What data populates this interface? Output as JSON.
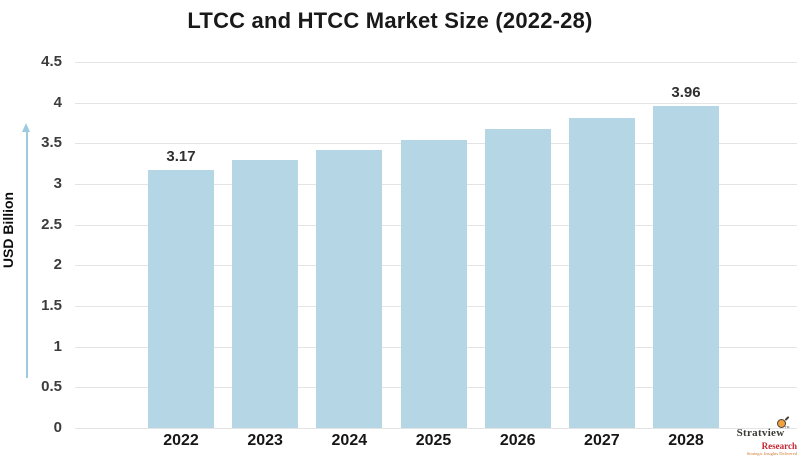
{
  "title": "LTCC and HTCC Market Size (2022-28)",
  "chart_data": {
    "type": "bar",
    "title": "LTCC and HTCC Market Size (2022-28)",
    "categories": [
      "2022",
      "2023",
      "2024",
      "2025",
      "2026",
      "2027",
      "2028"
    ],
    "values": [
      3.17,
      3.29,
      3.42,
      3.54,
      3.68,
      3.81,
      3.96
    ],
    "point_labels": [
      {
        "index": 0,
        "text": "3.17"
      },
      {
        "index": 6,
        "text": "3.96"
      }
    ],
    "xlabel": "",
    "ylabel": "USD Billion",
    "ylim": [
      0,
      4.5
    ],
    "yticks": [
      4.5,
      4,
      3.5,
      3,
      2.5,
      2,
      1.5,
      1,
      0.5,
      0
    ],
    "ytick_labels": [
      "4.5",
      "4",
      "3.5",
      "3",
      "2.5",
      "2",
      "1.5",
      "1",
      "0.5",
      "0"
    ],
    "grid": "horizontal",
    "legend": "none",
    "bar_color": "#b5d6e5",
    "grid_color": "#e4e4e4",
    "axis_arrow_color": "#9ccbe0"
  },
  "branding": {
    "brand": "Stratview",
    "trademark": "TM",
    "brand_sub": "Research",
    "tagline": "Strategic Insights Delivered",
    "sub_color": "#c32430"
  }
}
